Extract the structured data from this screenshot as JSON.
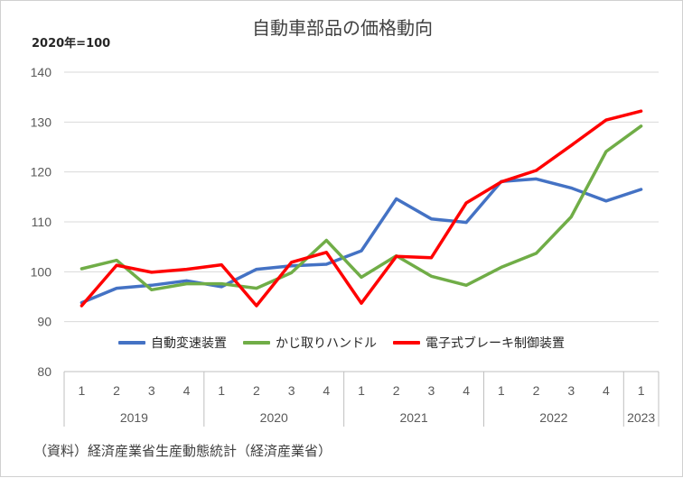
{
  "chart_data": {
    "type": "line",
    "title": "自動車部品の価格動向",
    "unit_label": "2020年=100",
    "source": "（資料）経済産業省生産動態統計（経済産業省）",
    "ylim": [
      80,
      140
    ],
    "yticks": [
      80,
      90,
      100,
      110,
      120,
      130,
      140
    ],
    "quarters": [
      "1",
      "2",
      "3",
      "4",
      "1",
      "2",
      "3",
      "4",
      "1",
      "2",
      "3",
      "4",
      "1",
      "2",
      "3",
      "4",
      "1"
    ],
    "years": [
      {
        "label": "2019",
        "count": 4
      },
      {
        "label": "2020",
        "count": 4
      },
      {
        "label": "2021",
        "count": 4
      },
      {
        "label": "2022",
        "count": 4
      },
      {
        "label": "2023",
        "count": 1
      }
    ],
    "series": [
      {
        "name": "自動変速装置",
        "color": "#4472C4",
        "values": [
          93.8,
          96.7,
          97.3,
          98.2,
          97.0,
          100.5,
          101.2,
          101.5,
          104.2,
          114.6,
          110.6,
          109.9,
          118.1,
          118.6,
          116.8,
          114.2,
          116.5
        ]
      },
      {
        "name": "かじ取りハンドル",
        "color": "#70AD47",
        "values": [
          100.6,
          102.3,
          96.4,
          97.6,
          97.6,
          96.7,
          99.8,
          106.3,
          98.9,
          103.2,
          99.1,
          97.3,
          100.9,
          103.7,
          111.0,
          124.1,
          129.2
        ]
      },
      {
        "name": "電子式ブレーキ制御装置",
        "color": "#FF0000",
        "values": [
          93.2,
          101.3,
          99.9,
          100.5,
          101.4,
          93.2,
          101.9,
          103.9,
          93.7,
          103.1,
          102.8,
          113.8,
          118.0,
          120.3,
          125.3,
          130.4,
          132.2
        ]
      }
    ]
  }
}
